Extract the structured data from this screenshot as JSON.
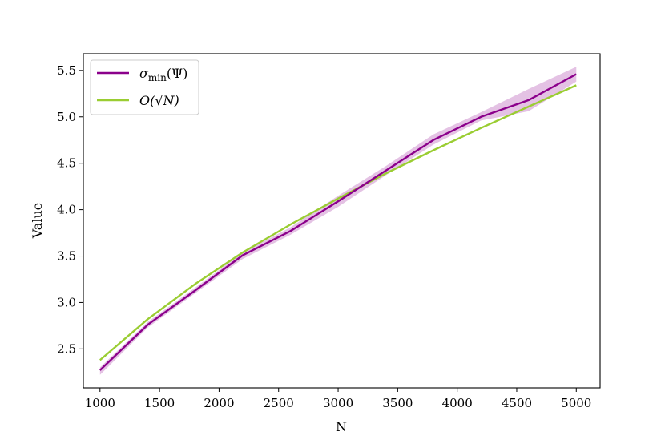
{
  "chart_data": {
    "type": "line",
    "title": "",
    "xlabel": "N",
    "ylabel": "Value",
    "xlim": [
      860,
      5200
    ],
    "ylim": [
      2.08,
      5.68
    ],
    "x_ticks": [
      1000,
      1500,
      2000,
      2500,
      3000,
      3500,
      4000,
      4500,
      5000
    ],
    "y_ticks": [
      2.5,
      3.0,
      3.5,
      4.0,
      4.5,
      5.0,
      5.5
    ],
    "y_tick_labels": [
      "2.5",
      "3.0",
      "3.5",
      "4.0",
      "4.5",
      "5.0",
      "5.5"
    ],
    "grid": false,
    "legend_position": "upper-left",
    "series": [
      {
        "name": "σmin(Ψ)",
        "color": "#8b008b",
        "band_color": "#d9a8d9",
        "x": [
          1000,
          1400,
          1800,
          2200,
          2600,
          3000,
          3400,
          3800,
          4200,
          4600,
          5000
        ],
        "values": [
          2.27,
          2.76,
          3.13,
          3.51,
          3.77,
          4.09,
          4.42,
          4.75,
          5.0,
          5.18,
          5.46
        ],
        "lower": [
          2.22,
          2.73,
          3.1,
          3.47,
          3.73,
          4.03,
          4.37,
          4.7,
          4.96,
          5.06,
          5.38
        ],
        "upper": [
          2.3,
          2.79,
          3.16,
          3.54,
          3.81,
          4.15,
          4.47,
          4.81,
          5.05,
          5.3,
          5.54
        ]
      },
      {
        "name": "O(√N)",
        "color": "#9acd32",
        "x": [
          1000,
          1400,
          1800,
          2200,
          2600,
          3000,
          3400,
          3800,
          4200,
          4600,
          5000
        ],
        "values": [
          2.38,
          2.82,
          3.2,
          3.54,
          3.84,
          4.12,
          4.39,
          4.64,
          4.88,
          5.11,
          5.34
        ]
      }
    ]
  },
  "legend": {
    "entry1": {
      "main": "σ",
      "sub": "min",
      "rest": "(Ψ)"
    },
    "entry2": {
      "label": "O(√N)"
    }
  }
}
